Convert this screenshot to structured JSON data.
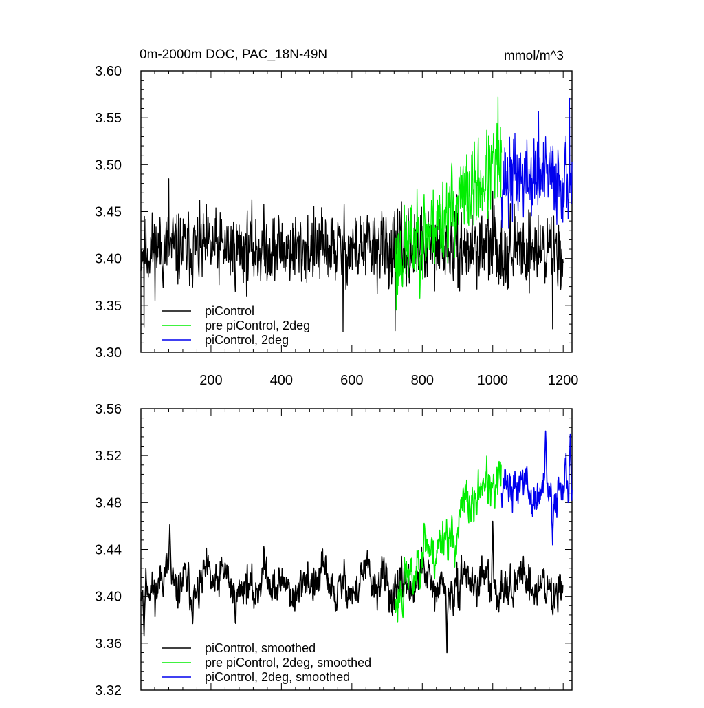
{
  "chart_data": [
    {
      "type": "line",
      "title": "0m-2000m DOC, PAC_18N-49N",
      "units": "mmol/m^3",
      "xlim": [
        1,
        1225
      ],
      "ylim": [
        3.3,
        3.6
      ],
      "x_ticks": [
        200,
        400,
        600,
        800,
        1000,
        1200
      ],
      "x_tick_labels": [
        "200",
        "400",
        "600",
        "800",
        "1000",
        "1200"
      ],
      "y_ticks": [
        3.3,
        3.35,
        3.4,
        3.45,
        3.5,
        3.55,
        3.6
      ],
      "y_tick_labels": [
        "3.30",
        "3.35",
        "3.40",
        "3.45",
        "3.50",
        "3.55",
        "3.60"
      ],
      "legend_position": "bottom-left",
      "series": [
        {
          "name": "piControl",
          "color": "#000000",
          "x_range": [
            1,
            1200
          ],
          "mean": 3.41,
          "std": 0.025,
          "trend": 0.0,
          "seed": 11,
          "extremes": [
            [
              10,
              3.327
            ],
            [
              80,
              3.485
            ],
            [
              575,
              3.322
            ],
            [
              723,
              3.323
            ],
            [
              1170,
              3.325
            ],
            [
              1000,
              3.472
            ]
          ]
        },
        {
          "name": "pre piControl, 2deg",
          "color": "#00ee00",
          "x_range": [
            724,
            1025
          ],
          "mean": 3.4,
          "std": 0.03,
          "trend": 0.1,
          "seed": 23,
          "extremes": [
            [
              726,
              3.345
            ],
            [
              1015,
              3.572
            ]
          ]
        },
        {
          "name": "piControl, 2deg",
          "color": "#0000ee",
          "x_range": [
            1025,
            1225
          ],
          "mean": 3.485,
          "std": 0.028,
          "trend": 0.0,
          "seed": 37,
          "extremes": [
            [
              1130,
              3.557
            ],
            [
              1218,
              3.571
            ],
            [
              1045,
              3.432
            ]
          ]
        }
      ]
    },
    {
      "type": "line",
      "title": "",
      "xlim": [
        1,
        1225
      ],
      "ylim": [
        3.32,
        3.56
      ],
      "x_ticks": [
        200,
        400,
        600,
        800,
        1000,
        1200
      ],
      "x_tick_labels": [],
      "y_ticks": [
        3.32,
        3.36,
        3.4,
        3.44,
        3.48,
        3.52,
        3.56
      ],
      "y_tick_labels": [
        "3.32",
        "3.36",
        "3.40",
        "3.44",
        "3.48",
        "3.52",
        "3.56"
      ],
      "legend_position": "bottom-left",
      "series": [
        {
          "name": "piControl, smoothed",
          "color": "#000000",
          "x_range": [
            1,
            1200
          ],
          "mean": 3.41,
          "std": 0.016,
          "trend": 0.0,
          "seed": 11,
          "extremes": [
            [
              10,
              3.366
            ],
            [
              83,
              3.461
            ],
            [
              1000,
              3.464
            ],
            [
              870,
              3.352
            ]
          ]
        },
        {
          "name": "pre piControl, 2deg, smoothed",
          "color": "#00ee00",
          "x_range": [
            724,
            1025
          ],
          "mean": 3.405,
          "std": 0.018,
          "trend": 0.1,
          "seed": 23,
          "extremes": [
            [
              745,
              3.382
            ],
            [
              1018,
              3.515
            ]
          ]
        },
        {
          "name": "piControl, 2deg, smoothed",
          "color": "#0000ee",
          "x_range": [
            1025,
            1225
          ],
          "mean": 3.49,
          "std": 0.016,
          "trend": 0.0,
          "seed": 37,
          "extremes": [
            [
              1150,
              3.541
            ],
            [
              1220,
              3.538
            ],
            [
              1170,
              3.444
            ]
          ]
        }
      ]
    }
  ]
}
